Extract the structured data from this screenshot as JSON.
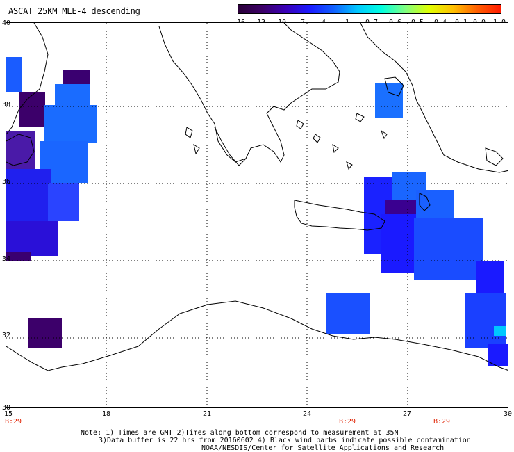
{
  "title": "ASCAT 25KM MLE-4 descending",
  "colorbar": {
    "labels": [
      "-16",
      "-13",
      "-10",
      "-7",
      "-4",
      "-1",
      "-0.7",
      "-0.6",
      "-0.5",
      "-0.4",
      "-0.1",
      "0.0",
      "1.0"
    ],
    "colors": [
      "#2a0038",
      "#3c0066",
      "#3a00b8",
      "#1a1aff",
      "#1060ff",
      "#00c8ff",
      "#00ffe0",
      "#80ff80",
      "#e0ff00",
      "#ffc000",
      "#ff6000",
      "#ff1a00"
    ]
  },
  "map": {
    "lat_labels": [
      "40",
      "38",
      "36",
      "34",
      "32",
      "30"
    ],
    "lon_labels": [
      "15",
      "18",
      "21",
      "24",
      "27",
      "30"
    ],
    "time_labels": [
      "B:29",
      "B:29",
      "B:29"
    ],
    "colors": {
      "coast": "#000000",
      "grid": "#000000"
    }
  },
  "notes": {
    "line1": "Note: 1) Times are GMT 2)Times along bottom correspond to measurement at 35N",
    "line2": "3)Data buffer is 22 hrs from 20160602 4) Black wind barbs indicate possible contamination",
    "line3": "NOAA/NESDIS/Center for Satellite Applications and Research"
  }
}
